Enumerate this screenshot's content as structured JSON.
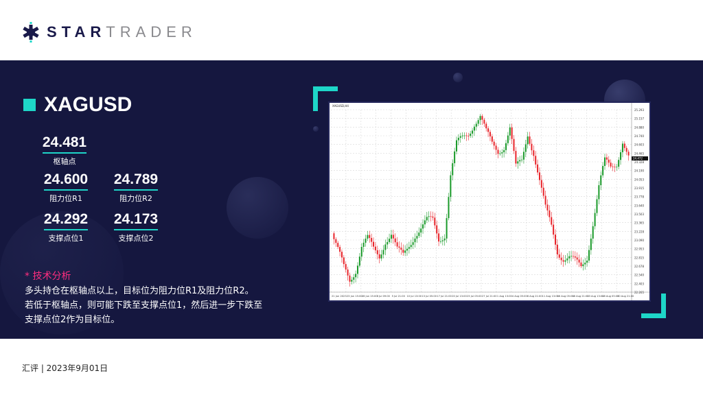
{
  "brand": {
    "name_bold": "STAR",
    "name_light": "TRADER",
    "colors": {
      "navy": "#1a1a4a",
      "accent": "#1ed6c8",
      "pink": "#ff2d7f"
    }
  },
  "symbol": "XAGUSD",
  "levels": {
    "pivot": {
      "value": "24.481",
      "label": "枢轴点"
    },
    "r1": {
      "value": "24.600",
      "label": "阻力位R1"
    },
    "r2": {
      "value": "24.789",
      "label": "阻力位R2"
    },
    "s1": {
      "value": "24.292",
      "label": "支撑点位1"
    },
    "s2": {
      "value": "24.173",
      "label": "支撑点位2"
    }
  },
  "analysis": {
    "title": "* 技术分析",
    "lines": [
      "多头持仓在枢轴点以上，目标位为阻力位R1及阻力位R2。",
      "若低于枢轴点，则可能下跌至支撑点位1，然后进一步下跌至",
      "支撑点位2作为目标位。"
    ]
  },
  "footer": "汇评 | 2023年9月01日",
  "chart_data": {
    "type": "candlestick",
    "title": "XAGUSD,H4",
    "ylim": [
      22.2,
      25.3
    ],
    "grid": true,
    "y_ticks": [
      "25.293",
      "25.157",
      "24.880",
      "24.740",
      "24.603",
      "24.465",
      "24.328",
      "24.190",
      "24.053",
      "23.915",
      "23.778",
      "23.640",
      "23.503",
      "23.365",
      "23.228",
      "23.090",
      "22.953",
      "22.815",
      "22.678",
      "22.540",
      "22.403",
      "22.265"
    ],
    "current_price": "24.472",
    "x_ticks": [
      "21 Jun 2023",
      "23 Jun 15:00",
      "28 Jun 15:00",
      "3 Jul 09:00",
      "5 Jul 21:00",
      "10 Jul 13:00",
      "13 Jul 05:00",
      "17 Jul 21:00",
      "20 Jul 13:00",
      "25 Jul 05:00",
      "27 Jul 21:00",
      "1 Aug 13:00",
      "4 Aug 05:00",
      "8 Aug 21:00",
      "11 Aug 13:00",
      "16 Aug 05:00",
      "18 Aug 21:00",
      "23 Aug 13:00",
      "28 Aug 05:00",
      "30 Aug 21:00"
    ],
    "closes": [
      23.2,
      22.9,
      22.6,
      22.4,
      22.6,
      23.0,
      23.1,
      22.9,
      22.8,
      23.1,
      23.2,
      22.9,
      22.8,
      23.0,
      23.2,
      23.3,
      23.4,
      23.4,
      23.1,
      23.2,
      24.2,
      24.7,
      24.8,
      24.9,
      25.1,
      25.2,
      24.9,
      24.7,
      24.6,
      24.7,
      25.0,
      24.3,
      24.4,
      24.9,
      24.6,
      24.1,
      23.6,
      23.3,
      22.9,
      22.8,
      22.8,
      22.7,
      22.6,
      22.8,
      23.4,
      24.0,
      24.4,
      24.3,
      24.4,
      24.8,
      24.5
    ],
    "colors": {
      "up": "#1a9a2a",
      "down": "#e8242a"
    }
  }
}
